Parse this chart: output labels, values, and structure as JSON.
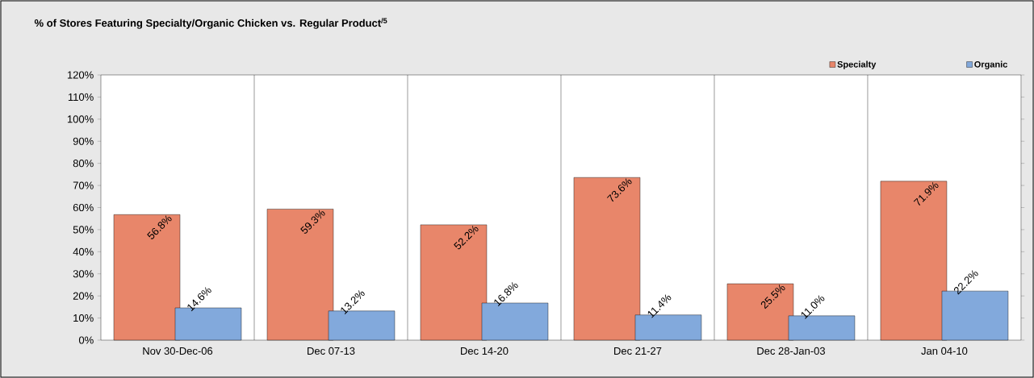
{
  "chart_data": {
    "type": "bar",
    "title": "% of Stores Featuring Specialty/Organic Chicken vs. Regular Product$^{/5}$",
    "categories": [
      "Nov 30-Dec-06",
      "Dec 07-13",
      "Dec 14-20",
      "Dec 21-27",
      "Dec 28-Jan-03",
      "Jan 04-10"
    ],
    "series": [
      {
        "name": "Specialty",
        "color": "#e8866a",
        "values": [
          56.8,
          59.3,
          52.2,
          73.6,
          25.5,
          71.9
        ],
        "value_labels": [
          "56.8%",
          "59.3%",
          "52.2%",
          "73.6%",
          "25.5%",
          "71.9%"
        ]
      },
      {
        "name": "Organic",
        "color": "#82a9dc",
        "values": [
          14.6,
          13.2,
          16.8,
          11.4,
          11.0,
          22.2
        ],
        "value_labels": [
          "14.6%",
          "13.2%",
          "16.8%",
          "11.4%",
          "11.0%",
          "22.2%"
        ]
      }
    ],
    "ylim": [
      0,
      120
    ],
    "yticks": [
      {
        "value": 0,
        "label": "0%"
      },
      {
        "value": 10,
        "label": "10%"
      },
      {
        "value": 20,
        "label": "20%"
      },
      {
        "value": 30,
        "label": "30%"
      },
      {
        "value": 40,
        "label": "40%"
      },
      {
        "value": 50,
        "label": "50%"
      },
      {
        "value": 60,
        "label": "60%"
      },
      {
        "value": 70,
        "label": "70%"
      },
      {
        "value": 80,
        "label": "80%"
      },
      {
        "value": 90,
        "label": "90%"
      },
      {
        "value": 100,
        "label": "100%"
      },
      {
        "value": 110,
        "label": "110%"
      },
      {
        "value": 120,
        "label": "120%"
      }
    ],
    "grid": "x",
    "legend": "top right"
  }
}
